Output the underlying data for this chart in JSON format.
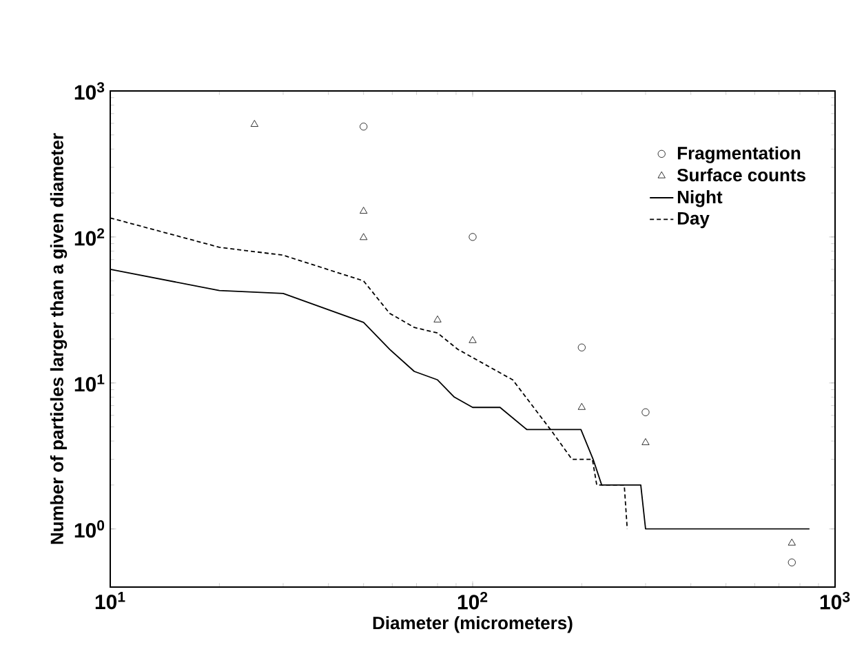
{
  "chart_data": {
    "type": "scatter",
    "xlabel": "Diameter (micrometers)",
    "ylabel": "Number of particles larger than a given diameter",
    "log": "xy",
    "xlim": [
      10,
      1000
    ],
    "ylim": [
      0.4,
      1000
    ],
    "xticks": [
      {
        "value": 10,
        "label": "10$^{1}$"
      },
      {
        "value": 100,
        "label": "10$^{2}$"
      },
      {
        "value": 1000,
        "label": "10$^{3}$"
      }
    ],
    "yticks": [
      {
        "value": 1,
        "label": "10$^{0}$"
      },
      {
        "value": 10,
        "label": "10$^{1}$"
      },
      {
        "value": 100,
        "label": "10$^{2}$"
      },
      {
        "value": 1000,
        "label": "10$^{3}$"
      }
    ],
    "legend": "top right",
    "grid": false,
    "series": [
      {
        "name": "Fragmentation",
        "marker": "circle",
        "color": "#000000",
        "x": [
          50,
          100,
          200,
          300,
          760
        ],
        "values": [
          570,
          100,
          17.5,
          6.3,
          0.59
        ]
      },
      {
        "name": "Surface counts",
        "marker": "triangle",
        "color": "#000000",
        "x": [
          25,
          50,
          50,
          80,
          100,
          200,
          300,
          760
        ],
        "values": [
          590,
          150,
          99,
          27,
          19.5,
          6.8,
          3.9,
          0.8
        ]
      },
      {
        "name": "Night",
        "type": "line",
        "marker": "none",
        "line_style": "solid",
        "color": "#000000",
        "x": [
          10,
          20,
          30,
          50,
          59,
          69,
          80,
          89,
          100,
          119,
          141,
          199,
          215,
          227,
          291,
          300,
          850
        ],
        "values": [
          60,
          43,
          41,
          26,
          17,
          12,
          10.5,
          8,
          6.8,
          6.8,
          4.8,
          4.8,
          3,
          2,
          2,
          1,
          1
        ]
      },
      {
        "name": "Day",
        "type": "line",
        "marker": "none",
        "line_style": "dashed",
        "color": "#000000",
        "x": [
          10,
          20,
          30,
          50,
          59,
          69,
          80,
          91,
          129,
          165,
          188,
          214,
          220,
          262,
          267
        ],
        "values": [
          135,
          85,
          75,
          50,
          30,
          24,
          22,
          17,
          10.5,
          4.7,
          3,
          3,
          2,
          2,
          1
        ]
      }
    ]
  }
}
